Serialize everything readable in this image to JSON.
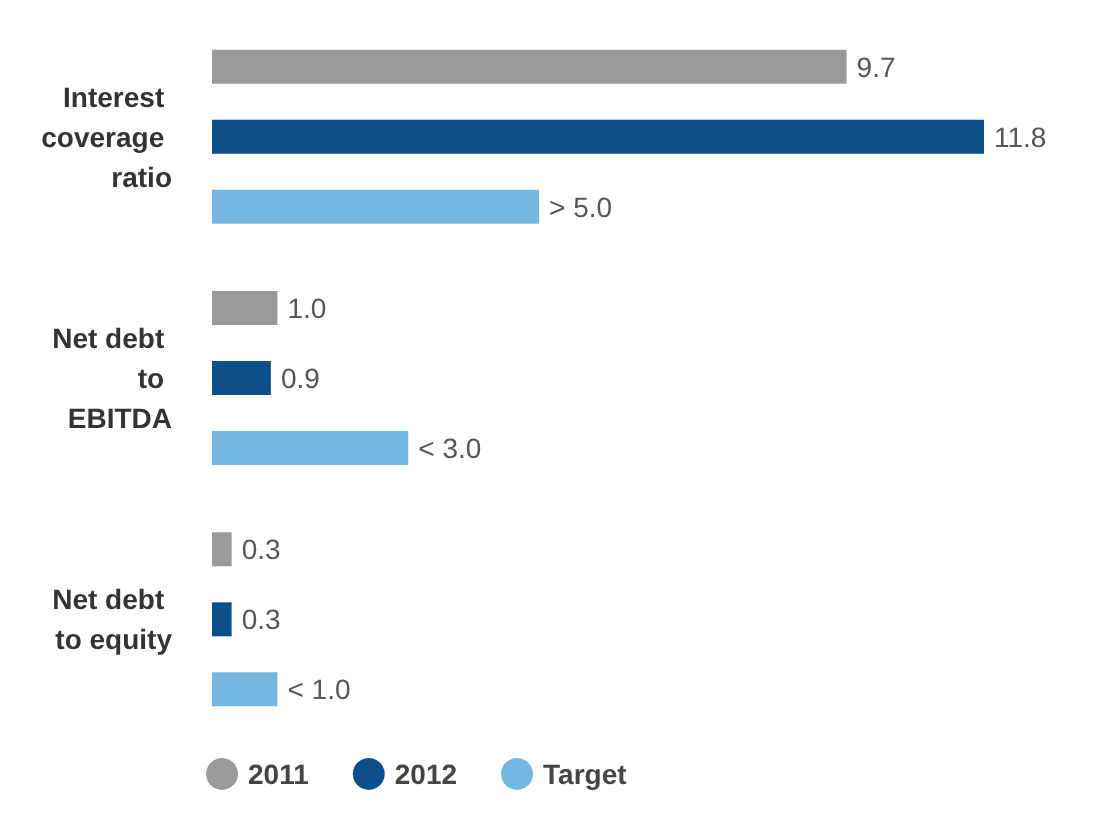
{
  "chart_data": {
    "type": "bar",
    "orientation": "horizontal",
    "categories": [
      "Interest coverage ratio",
      "Net debt to EBITDA",
      "Net debt to equity"
    ],
    "series": [
      {
        "name": "2011",
        "color": "#999999",
        "values": [
          9.7,
          1.0,
          0.3
        ],
        "value_labels": [
          "9.7",
          "1.0",
          "0.3"
        ]
      },
      {
        "name": "2012",
        "color": "#0d4f8b",
        "values": [
          11.8,
          0.9,
          0.3
        ],
        "value_labels": [
          "11.8",
          "0.9",
          "0.3"
        ]
      },
      {
        "name": "Target",
        "color": "#74b8e2",
        "values": [
          5.0,
          3.0,
          1.0
        ],
        "value_labels": [
          "> 5.0",
          "< 3.0",
          "< 1.0"
        ]
      }
    ],
    "legend": "bottom left"
  }
}
